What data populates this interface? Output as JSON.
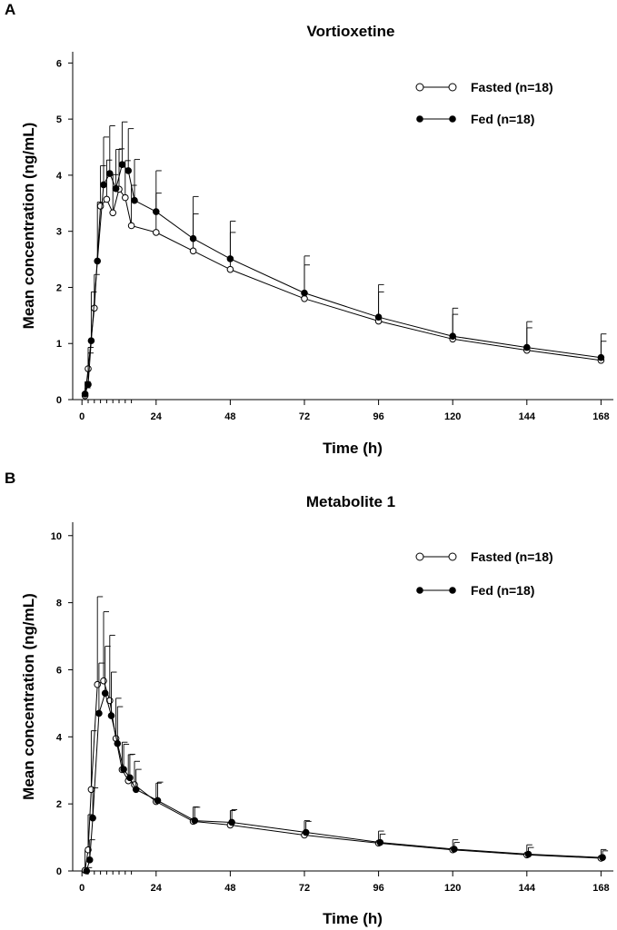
{
  "chart_data": [
    {
      "type": "line",
      "panel_label": "A",
      "title": "Vortioxetine",
      "xlabel": "Time (h)",
      "ylabel": "Mean concentration (ng/mL)",
      "xlim": [
        -3,
        172
      ],
      "ylim": [
        0,
        6.2
      ],
      "xticks": [
        0,
        24,
        48,
        72,
        96,
        120,
        144,
        168
      ],
      "yticks": [
        0,
        1,
        2,
        3,
        4,
        5,
        6
      ],
      "minor_xticks": [
        2,
        4,
        6,
        8,
        10,
        12,
        14,
        16
      ],
      "legend": "top-right",
      "series": [
        {
          "name": "Fasted (n=18)",
          "marker": "open-circle",
          "x": [
            1,
            2,
            4,
            6,
            8,
            10,
            12,
            14,
            16,
            24,
            36,
            48,
            72,
            96,
            120,
            144,
            168
          ],
          "y": [
            0.07,
            0.55,
            1.63,
            3.45,
            3.57,
            3.33,
            3.75,
            3.6,
            3.1,
            2.98,
            2.65,
            2.32,
            1.8,
            1.4,
            1.08,
            0.88,
            0.7
          ],
          "err": [
            0.14,
            0.38,
            0.6,
            0.72,
            0.7,
            0.68,
            0.72,
            0.66,
            0.72,
            0.7,
            0.66,
            0.66,
            0.6,
            0.52,
            0.44,
            0.4,
            0.34
          ]
        },
        {
          "name": "Fed (n=18)",
          "marker": "filled-circle",
          "x": [
            1,
            2,
            3,
            5,
            7,
            9,
            11,
            13,
            15,
            17,
            24,
            36,
            48,
            72,
            96,
            120,
            144,
            168
          ],
          "y": [
            0.1,
            0.27,
            1.05,
            2.47,
            3.83,
            4.03,
            3.76,
            4.19,
            4.08,
            3.55,
            3.35,
            2.87,
            2.51,
            1.9,
            1.47,
            1.13,
            0.93,
            0.75
          ],
          "err": [
            0.22,
            0.56,
            0.87,
            1.05,
            0.85,
            0.85,
            0.7,
            0.76,
            0.75,
            0.73,
            0.73,
            0.75,
            0.67,
            0.66,
            0.58,
            0.5,
            0.46,
            0.42
          ]
        }
      ]
    },
    {
      "type": "line",
      "panel_label": "B",
      "title": "Metabolite 1",
      "xlabel": "Time (h)",
      "ylabel": "Mean concentration (ng/mL)",
      "xlim": [
        -3,
        172
      ],
      "ylim": [
        0,
        10.4
      ],
      "xticks": [
        0,
        24,
        48,
        72,
        96,
        120,
        144,
        168
      ],
      "yticks": [
        0,
        2,
        4,
        6,
        8,
        10
      ],
      "minor_xticks": [
        2,
        4,
        6,
        8,
        10,
        12,
        14,
        16
      ],
      "legend": "top-right",
      "series": [
        {
          "name": "Fasted (n=18)",
          "marker": "open-circle",
          "x": [
            1,
            2,
            3,
            5,
            7,
            9,
            11,
            13,
            15,
            17,
            24,
            36,
            48,
            72,
            96,
            120,
            144,
            168
          ],
          "y": [
            0.02,
            0.63,
            2.43,
            5.56,
            5.67,
            5.08,
            3.95,
            3.02,
            2.69,
            2.57,
            2.07,
            1.48,
            1.37,
            1.07,
            0.83,
            0.63,
            0.48,
            0.38
          ],
          "err": [
            0.6,
            1.05,
            1.75,
            2.62,
            2.06,
            1.95,
            1.2,
            0.82,
            0.78,
            0.7,
            0.55,
            0.43,
            0.43,
            0.43,
            0.36,
            0.3,
            0.3,
            0.26
          ]
        },
        {
          "name": "Fed (n=18)",
          "marker": "filled-circle",
          "x": [
            1.5,
            2.5,
            3.5,
            5.5,
            7.5,
            9.5,
            11.5,
            13.5,
            15.5,
            17.5,
            24.5,
            36.5,
            48.5,
            72.5,
            96.5,
            120.5,
            144.5,
            168.5
          ],
          "y": [
            0,
            0.33,
            1.58,
            4.7,
            5.3,
            4.63,
            3.8,
            3.03,
            2.78,
            2.43,
            2.1,
            1.5,
            1.45,
            1.15,
            0.85,
            0.65,
            0.5,
            0.4
          ],
          "err": [
            0.1,
            0.6,
            0.9,
            1.5,
            1.4,
            1.3,
            1.1,
            0.75,
            0.7,
            0.6,
            0.55,
            0.4,
            0.38,
            0.33,
            0.25,
            0.2,
            0.2,
            0.2
          ]
        }
      ]
    }
  ]
}
